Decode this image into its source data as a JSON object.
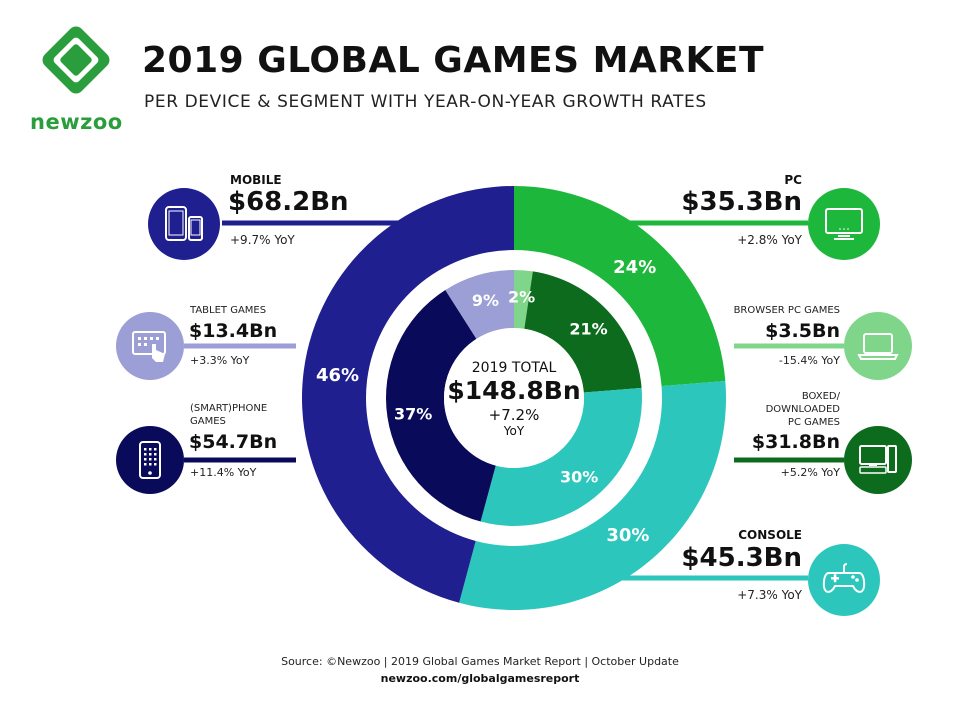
{
  "header": {
    "brand": "newzoo",
    "title": "2019 GLOBAL GAMES MARKET",
    "subtitle": "PER DEVICE & SEGMENT WITH YEAR-ON-YEAR GROWTH RATES"
  },
  "colors": {
    "mobile": "#1f1f8f",
    "tablet": "#9c9ed6",
    "smartphone": "#0a0a5a",
    "pc": "#1db83b",
    "browser_pc": "#7fd68a",
    "boxed_pc": "#0c6b1d",
    "console": "#2cc6bc"
  },
  "labels": {
    "mobile": {
      "name": "MOBILE",
      "value": "$68.2Bn",
      "growth": "+9.7% YoY"
    },
    "tablet": {
      "name": "TABLET GAMES",
      "value": "$13.4Bn",
      "growth": "+3.3% YoY"
    },
    "smartphone": {
      "name_line1": "(SMART)PHONE",
      "name_line2": "GAMES",
      "value": "$54.7Bn",
      "growth": "+11.4% YoY"
    },
    "pc": {
      "name": "PC",
      "value": "$35.3Bn",
      "growth": "+2.8% YoY"
    },
    "browser_pc": {
      "name": "BROWSER PC GAMES",
      "value": "$3.5Bn",
      "growth": "-15.4% YoY"
    },
    "boxed_pc": {
      "name_line1": "BOXED/",
      "name_line2": "DOWNLOADED",
      "name_line3": "PC GAMES",
      "value": "$31.8Bn",
      "growth": "+5.2% YoY"
    },
    "console": {
      "name": "CONSOLE",
      "value": "$45.3Bn",
      "growth": "+7.3% YoY"
    }
  },
  "center": {
    "line1": "2019 TOTAL",
    "value": "$148.8Bn",
    "growth": "+7.2%",
    "growth_unit": "YoY"
  },
  "footer": {
    "source": "Source: ©Newzoo | 2019 Global Games Market Report | October Update",
    "url": "newzoo.com/globalgamesreport"
  },
  "chart_data": [
    {
      "type": "pie",
      "title": "",
      "ring": "outer",
      "categories": [
        "PC",
        "CONSOLE",
        "MOBILE"
      ],
      "values": [
        35.3,
        45.3,
        68.2
      ],
      "percent_labels": [
        "24%",
        "30%",
        "46%"
      ]
    },
    {
      "type": "pie",
      "title": "",
      "ring": "inner",
      "categories": [
        "BROWSER PC GAMES",
        "BOXED/DOWNLOADED PC GAMES",
        "CONSOLE",
        "(SMART)PHONE GAMES",
        "TABLET GAMES"
      ],
      "values": [
        3.5,
        31.8,
        45.3,
        54.7,
        13.4
      ],
      "percent_labels": [
        "2%",
        "21%",
        "30%",
        "37%",
        "9%"
      ]
    }
  ]
}
